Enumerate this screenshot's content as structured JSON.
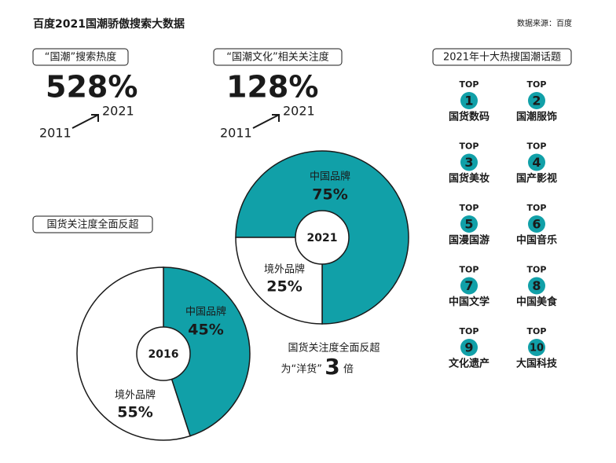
{
  "title": "百度2021国潮骄傲搜索大数据",
  "source": "数据来源：百度",
  "stats": [
    {
      "label": "“国潮”搜索热度",
      "value_label": "528%",
      "from": "2011",
      "to": "2021"
    },
    {
      "label": "“国潮文化”相关关注度",
      "value_label": "128%",
      "from": "2011",
      "to": "2021"
    }
  ],
  "chart_data": [
    {
      "type": "pie",
      "title": "国货关注度全面反超",
      "center_label": "2016",
      "categories": [
        "中国品牌",
        "境外品牌"
      ],
      "values": [
        45,
        55
      ],
      "value_labels": [
        "45%",
        "55%"
      ],
      "colors": [
        "#11a0a8",
        "#ffffff"
      ]
    },
    {
      "type": "pie",
      "center_label": "2021",
      "categories": [
        "中国品牌",
        "境外品牌"
      ],
      "values": [
        75,
        25
      ],
      "value_labels": [
        "75%",
        "25%"
      ],
      "colors": [
        "#11a0a8",
        "#ffffff"
      ]
    }
  ],
  "note": {
    "line1": "国货关注度全面反超",
    "pre": "为“洋货”",
    "big": "3",
    "post": "倍"
  },
  "topics": {
    "title": "2021年十大热搜国潮话题",
    "top_label": "TOP",
    "items": [
      {
        "rank": "1",
        "name": "国货数码"
      },
      {
        "rank": "2",
        "name": "国潮服饰"
      },
      {
        "rank": "3",
        "name": "国货美妆"
      },
      {
        "rank": "4",
        "name": "国产影视"
      },
      {
        "rank": "5",
        "name": "国漫国游"
      },
      {
        "rank": "6",
        "name": "中国音乐"
      },
      {
        "rank": "7",
        "name": "中国文学"
      },
      {
        "rank": "8",
        "name": "中国美食"
      },
      {
        "rank": "9",
        "name": "文化遗产"
      },
      {
        "rank": "10",
        "name": "大国科技"
      }
    ]
  }
}
